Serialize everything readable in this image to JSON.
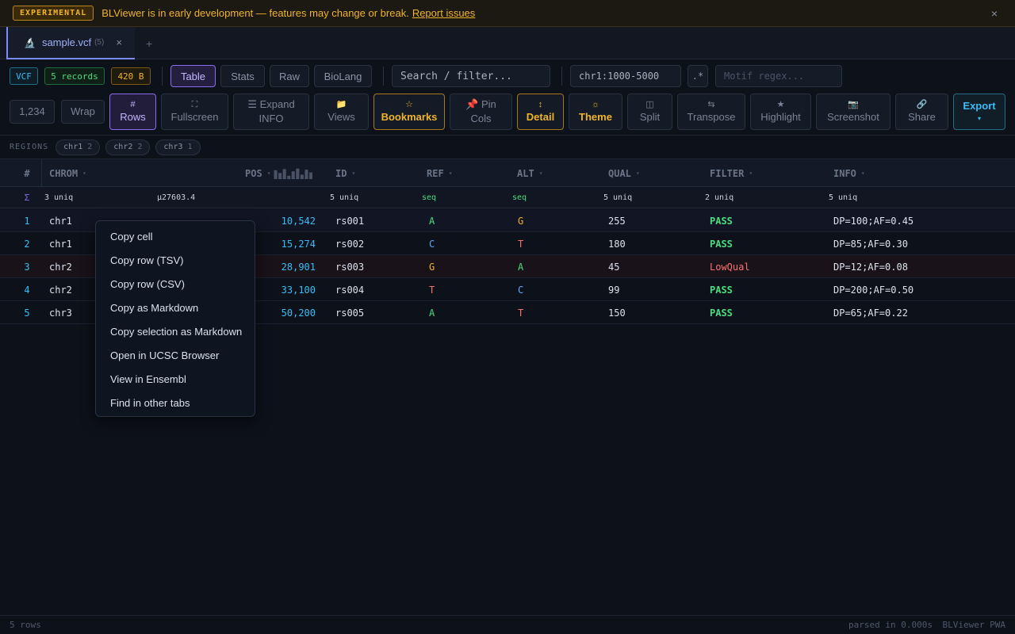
{
  "banner": {
    "badge": "EXPERIMENTAL",
    "message": "BLViewer is in early development — features may change or break.",
    "link": "Report issues",
    "close": "×"
  },
  "tabs": [
    {
      "icon": "🔬",
      "name": "sample.vcf",
      "count": "(5)",
      "close": "×"
    }
  ],
  "tab_add": "+",
  "info_badges": {
    "format": "VCF",
    "records": "5 records",
    "size": "420 B"
  },
  "view_modes": [
    "Table",
    "Stats",
    "Raw",
    "BioLang"
  ],
  "search": {
    "placeholder": "Search / filter..."
  },
  "region_input": {
    "value": "chr1:1000-5000"
  },
  "regex_toggle": ".*",
  "motif": {
    "placeholder": "Motif regex..."
  },
  "toolbar": {
    "number_format": "1,234",
    "wrap": "Wrap",
    "rows": {
      "icon": "#",
      "label": "Rows"
    },
    "fullscreen": {
      "icon": "⛶",
      "label": "Fullscreen"
    },
    "expand_info": {
      "line1": "☰ Expand",
      "line2": "INFO"
    },
    "views": {
      "icon": "📁",
      "label": "Views"
    },
    "bookmarks": {
      "icon": "☆",
      "label": "Bookmarks"
    },
    "pin_cols": {
      "line1": "📌 Pin",
      "line2": "Cols"
    },
    "detail": {
      "icon": "↕",
      "label": "Detail"
    },
    "theme": {
      "icon": "☼",
      "label": "Theme"
    },
    "split": {
      "icon": "◫",
      "label": "Split"
    },
    "transpose": {
      "icon": "⇆",
      "label": "Transpose"
    },
    "highlight": {
      "icon": "★",
      "label": "Highlight"
    },
    "screenshot": {
      "icon": "📷",
      "label": "Screenshot"
    },
    "share": {
      "icon": "🔗",
      "label": "Share"
    },
    "export": {
      "label": "Export",
      "icon": "▾"
    }
  },
  "regions": {
    "label": "REGIONS",
    "chips": [
      {
        "name": "chr1",
        "count": "2"
      },
      {
        "name": "chr2",
        "count": "2"
      },
      {
        "name": "chr3",
        "count": "1"
      }
    ]
  },
  "table": {
    "rownum_header": "#",
    "columns": [
      "CHROM",
      "POS",
      "ID",
      "REF",
      "ALT",
      "QUAL",
      "FILTER",
      "INFO"
    ],
    "sort_icon": "▾",
    "summary": {
      "sigma": "Σ",
      "chrom": "3 uniq",
      "pos": "μ27603.4",
      "id": "5 uniq",
      "ref": "seq",
      "alt": "seq",
      "qual": "5 uniq",
      "filter": "2 uniq",
      "info": "5 uniq"
    },
    "rows": [
      {
        "n": "1",
        "chrom": "chr1",
        "pos": "10,542",
        "id": "rs001",
        "ref": "A",
        "alt": "G",
        "qual": "255",
        "filter": "PASS",
        "info": "DP=100;AF=0.45"
      },
      {
        "n": "2",
        "chrom": "chr1",
        "pos": "15,274",
        "id": "rs002",
        "ref": "C",
        "alt": "T",
        "qual": "180",
        "filter": "PASS",
        "info": "DP=85;AF=0.30"
      },
      {
        "n": "3",
        "chrom": "chr2",
        "pos": "28,901",
        "id": "rs003",
        "ref": "G",
        "alt": "A",
        "qual": "45",
        "filter": "LowQual",
        "info": "DP=12;AF=0.08"
      },
      {
        "n": "4",
        "chrom": "chr2",
        "pos": "33,100",
        "id": "rs004",
        "ref": "T",
        "alt": "C",
        "qual": "99",
        "filter": "PASS",
        "info": "DP=200;AF=0.50"
      },
      {
        "n": "5",
        "chrom": "chr3",
        "pos": "50,200",
        "id": "rs005",
        "ref": "A",
        "alt": "T",
        "qual": "150",
        "filter": "PASS",
        "info": "DP=65;AF=0.22"
      }
    ],
    "pos_sparkline": [
      0.8,
      0.55,
      0.9,
      0.3,
      0.7,
      0.95,
      0.4,
      0.85,
      0.6
    ]
  },
  "base_colors": {
    "A": "#4ade80",
    "C": "#60a5fa",
    "G": "#f0b429",
    "T": "#f87171"
  },
  "context_menu": [
    "Copy cell",
    "Copy row (TSV)",
    "Copy row (CSV)",
    "Copy as Markdown",
    "Copy selection as Markdown",
    "Open in UCSC Browser",
    "View in Ensembl",
    "Find in other tabs"
  ],
  "status": {
    "left": "5 rows",
    "parsed": "parsed in 0.000s",
    "app": "BLViewer PWA"
  }
}
